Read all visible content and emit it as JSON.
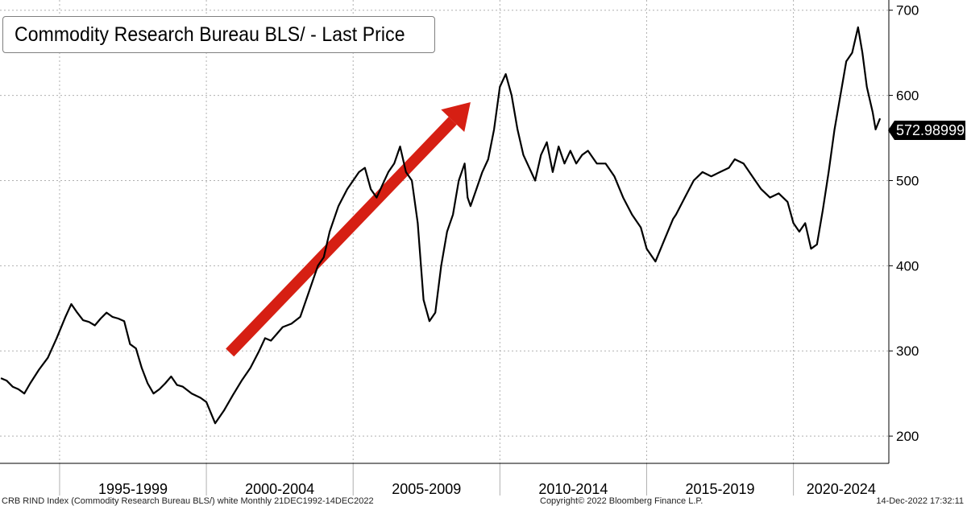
{
  "legend": {
    "label": "Commodity Research Bureau BLS/  - Last Price"
  },
  "last_price_label": "572.98999",
  "footer": {
    "left": "CRB RIND Index (Commodity Research Bureau BLS/) white  Monthly 21DEC1992-14DEC2022",
    "center": "Copyright© 2022 Bloomberg Finance L.P.",
    "right": "14-Dec-2022 17:32:11"
  },
  "colors": {
    "line": "#000000",
    "arrow": "#d61f13",
    "grid": "#b0b0b0",
    "background": "#ffffff"
  },
  "chart_data": {
    "type": "line",
    "title": "",
    "xlabel": "",
    "ylabel": "",
    "ylim": [
      168,
      712
    ],
    "xlim": [
      1992.97,
      2023.25
    ],
    "y_ticks": [
      200,
      300,
      400,
      500,
      600,
      700
    ],
    "y_tick_labels": [
      "200",
      "300",
      "400",
      "500",
      "600",
      "700"
    ],
    "x_period_labels": [
      {
        "label": "1995-1999",
        "from": 1995,
        "to": 2000
      },
      {
        "label": "2000-2004",
        "from": 2000,
        "to": 2005
      },
      {
        "label": "2005-2009",
        "from": 2005,
        "to": 2010
      },
      {
        "label": "2010-2014",
        "from": 2010,
        "to": 2015
      },
      {
        "label": "2015-2019",
        "from": 2015,
        "to": 2020
      },
      {
        "label": "2020-2024",
        "from": 2020,
        "to": 2025
      }
    ],
    "grid": true,
    "legend_position": "top-left",
    "last_value": 572.99,
    "annotation": {
      "type": "arrow",
      "from": {
        "x": 2000.8,
        "y": 298
      },
      "to": {
        "x": 2009.0,
        "y": 592
      }
    },
    "series": [
      {
        "name": "Commodity Research Bureau BLS/  - Last Price",
        "x": [
          1993.0,
          1993.2,
          1993.4,
          1993.6,
          1993.8,
          1994.0,
          1994.3,
          1994.6,
          1994.9,
          1995.2,
          1995.4,
          1995.6,
          1995.8,
          1996.0,
          1996.2,
          1996.4,
          1996.6,
          1996.8,
          1997.0,
          1997.2,
          1997.4,
          1997.6,
          1997.8,
          1998.0,
          1998.2,
          1998.4,
          1998.6,
          1998.8,
          1999.0,
          1999.2,
          1999.5,
          1999.8,
          2000.0,
          2000.3,
          2000.6,
          2000.9,
          2001.2,
          2001.5,
          2001.8,
          2002.0,
          2002.2,
          2002.4,
          2002.6,
          2002.9,
          2003.2,
          2003.5,
          2003.8,
          2004.0,
          2004.2,
          2004.5,
          2004.8,
          2005.0,
          2005.2,
          2005.4,
          2005.6,
          2005.8,
          2006.0,
          2006.2,
          2006.4,
          2006.6,
          2006.8,
          2007.0,
          2007.2,
          2007.4,
          2007.6,
          2007.8,
          2008.0,
          2008.2,
          2008.4,
          2008.5,
          2008.6,
          2008.8,
          2008.9,
          2009.0,
          2009.2,
          2009.4,
          2009.6,
          2009.8,
          2010.0,
          2010.2,
          2010.4,
          2010.6,
          2010.8,
          2011.0,
          2011.2,
          2011.4,
          2011.6,
          2011.8,
          2012.0,
          2012.2,
          2012.4,
          2012.6,
          2012.8,
          2013.0,
          2013.3,
          2013.6,
          2013.9,
          2014.2,
          2014.5,
          2014.8,
          2015.0,
          2015.3,
          2015.6,
          2015.9,
          2016.0,
          2016.3,
          2016.6,
          2016.9,
          2017.2,
          2017.5,
          2017.8,
          2018.0,
          2018.3,
          2018.6,
          2018.9,
          2019.2,
          2019.5,
          2019.8,
          2020.0,
          2020.2,
          2020.4,
          2020.6,
          2020.8,
          2021.0,
          2021.2,
          2021.4,
          2021.6,
          2021.8,
          2022.0,
          2022.2,
          2022.35,
          2022.5,
          2022.7,
          2022.8,
          2022.95
        ],
        "values": [
          268,
          265,
          258,
          255,
          250,
          262,
          278,
          292,
          315,
          340,
          355,
          345,
          336,
          334,
          330,
          338,
          345,
          340,
          338,
          335,
          308,
          303,
          280,
          262,
          250,
          255,
          262,
          270,
          260,
          258,
          250,
          245,
          240,
          215,
          230,
          248,
          265,
          280,
          300,
          315,
          312,
          320,
          328,
          332,
          340,
          370,
          400,
          410,
          440,
          470,
          490,
          500,
          510,
          515,
          490,
          480,
          495,
          510,
          520,
          540,
          510,
          500,
          450,
          360,
          335,
          345,
          400,
          440,
          460,
          480,
          500,
          520,
          480,
          470,
          490,
          510,
          525,
          560,
          610,
          625,
          600,
          560,
          530,
          515,
          500,
          530,
          545,
          510,
          540,
          520,
          535,
          520,
          530,
          535,
          520,
          520,
          505,
          480,
          460,
          445,
          420,
          405,
          430,
          455,
          460,
          480,
          500,
          510,
          505,
          510,
          515,
          525,
          520,
          505,
          490,
          480,
          485,
          475,
          450,
          440,
          450,
          420,
          425,
          465,
          510,
          560,
          600,
          640,
          650,
          680,
          650,
          610,
          580,
          560,
          573
        ]
      }
    ]
  }
}
